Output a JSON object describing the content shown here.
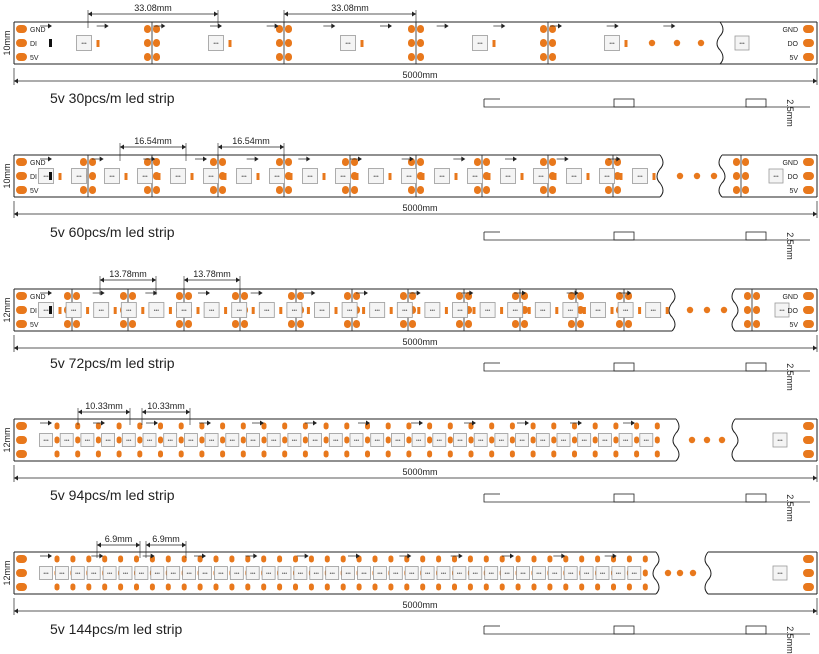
{
  "colors": {
    "pad": "#e8781c",
    "line": "#222222",
    "chip_fill": "#f4f4f4",
    "chip_stroke": "#999999",
    "resistor": "#e8781c",
    "black_part": "#111111",
    "background": "#ffffff"
  },
  "strips": [
    {
      "title": "5v 30pcs/m led strip",
      "width_label": "10mm",
      "spacing_label": "33.08mm",
      "length_label": "5000mm",
      "pitch_label": "2.5mm",
      "pin_labels": [
        "GND",
        "DI",
        "5V"
      ],
      "out_labels": [
        "GND",
        "DO",
        "5V"
      ]
    },
    {
      "title": "5v 60pcs/m led strip",
      "width_label": "10mm",
      "spacing_label": "16.54mm",
      "length_label": "5000mm",
      "pitch_label": "2.5mm",
      "pin_labels": [
        "GND",
        "DI",
        "5V"
      ],
      "out_labels": [
        "GND",
        "DO",
        "5V"
      ]
    },
    {
      "title": "5v 72pcs/m led strip",
      "width_label": "12mm",
      "spacing_label": "13.78mm",
      "length_label": "5000mm",
      "pitch_label": "2.5mm",
      "pin_labels": [
        "GND",
        "DI",
        "5V"
      ],
      "out_labels": [
        "GND",
        "DO",
        "5V"
      ]
    },
    {
      "title": "5v 94pcs/m led strip",
      "width_label": "12mm",
      "spacing_label": "10.33mm",
      "length_label": "5000mm",
      "pitch_label": "2.5mm",
      "pin_labels": [],
      "out_labels": []
    },
    {
      "title": "5v 144pcs/m led strip",
      "width_label": "12mm",
      "spacing_label": "6.9mm",
      "length_label": "5000mm",
      "pitch_label": "2.5mm",
      "pin_labels": [],
      "out_labels": []
    }
  ]
}
